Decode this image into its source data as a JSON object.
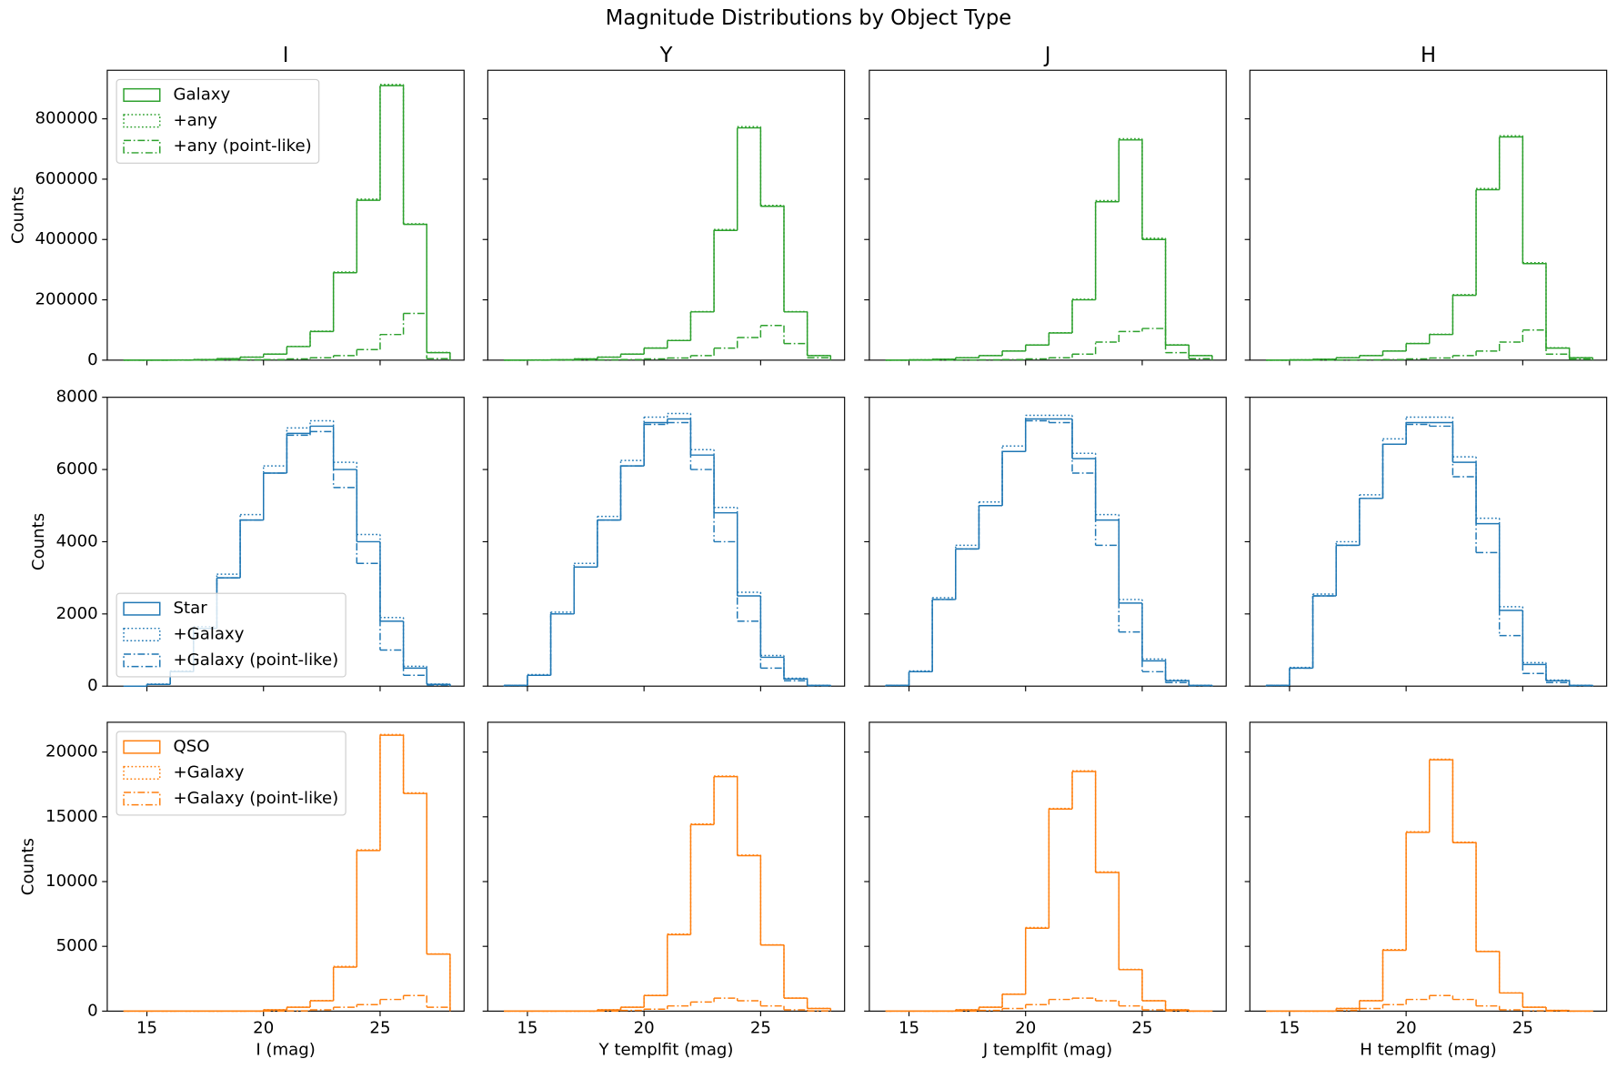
{
  "title": "Magnitude Distributions by Object Type",
  "chart_data": [
    {
      "type": "histogram",
      "ylabel": "Counts",
      "ylim": [
        0,
        961000
      ],
      "yticks": [
        0,
        200000,
        400000,
        600000,
        800000
      ],
      "legend": "upper left",
      "bins": [
        14,
        15,
        16,
        17,
        18,
        19,
        20,
        21,
        22,
        23,
        24,
        25,
        26,
        27,
        28
      ],
      "panels": [
        {
          "title": "I",
          "xlim": [
            13.3,
            28.6
          ],
          "xticks": [
            15,
            20,
            25
          ]
        },
        {
          "title": "Y",
          "xlim": [
            13.3,
            28.6
          ],
          "xticks": [
            15,
            20,
            25
          ]
        },
        {
          "title": "J",
          "xlim": [
            13.3,
            28.6
          ],
          "xticks": [
            15,
            20,
            25
          ]
        },
        {
          "title": "H",
          "xlim": [
            13.3,
            28.6
          ],
          "xticks": [
            15,
            20,
            25
          ]
        }
      ],
      "series": [
        {
          "name": "Galaxy",
          "color": "#2ca02c",
          "linestyle": "solid",
          "values": [
            [
              0,
              0,
              500,
              2000,
              5000,
              10000,
              20000,
              45000,
              95000,
              290000,
              530000,
              910000,
              450000,
              25000
            ],
            [
              0,
              500,
              1500,
              4000,
              10000,
              20000,
              40000,
              65000,
              160000,
              430000,
              770000,
              510000,
              160000,
              15000
            ],
            [
              0,
              1000,
              3000,
              8000,
              15000,
              30000,
              50000,
              90000,
              200000,
              525000,
              730000,
              400000,
              50000,
              15000
            ],
            [
              0,
              1000,
              3000,
              8000,
              15000,
              30000,
              55000,
              85000,
              215000,
              565000,
              740000,
              320000,
              40000,
              8000
            ]
          ]
        },
        {
          "name": "+any",
          "color": "#2ca02c",
          "linestyle": "dotted",
          "values": [
            [
              0,
              0,
              600,
              2100,
              5200,
              10300,
              20400,
              45600,
              96000,
              292000,
              534000,
              914000,
              452000,
              25500
            ],
            [
              0,
              600,
              1600,
              4100,
              10200,
              20300,
              40500,
              65700,
              161000,
              433000,
              774000,
              513000,
              161000,
              15500
            ],
            [
              0,
              1100,
              3100,
              8200,
              15300,
              30400,
              50600,
              91000,
              202000,
              529000,
              734000,
              404000,
              51000,
              15500
            ],
            [
              0,
              1100,
              3100,
              8200,
              15300,
              30400,
              55600,
              86000,
              217000,
              569000,
              744000,
              323000,
              41000,
              8200
            ]
          ]
        },
        {
          "name": "+any (point-like)",
          "color": "#2ca02c",
          "linestyle": "dashdot",
          "values": [
            [
              0,
              0,
              0,
              200,
              500,
              1000,
              2000,
              4000,
              8000,
              15000,
              35000,
              85000,
              155000,
              5000
            ],
            [
              0,
              0,
              200,
              500,
              1000,
              2000,
              4000,
              7000,
              15000,
              40000,
              75000,
              115000,
              55000,
              8000
            ],
            [
              0,
              0,
              200,
              500,
              1000,
              2000,
              4000,
              8000,
              20000,
              60000,
              95000,
              105000,
              25000,
              5000
            ],
            [
              0,
              0,
              200,
              500,
              1000,
              2000,
              4000,
              7000,
              15000,
              30000,
              60000,
              100000,
              20000,
              3000
            ]
          ]
        }
      ]
    },
    {
      "type": "histogram",
      "ylabel": "Counts",
      "ylim": [
        0,
        8000
      ],
      "yticks": [
        0,
        2000,
        4000,
        6000,
        8000
      ],
      "legend": "lower left",
      "bins": [
        14,
        15,
        16,
        17,
        18,
        19,
        20,
        21,
        22,
        23,
        24,
        25,
        26,
        27,
        28
      ],
      "panels": [
        {
          "xlim": [
            13.3,
            28.6
          ],
          "xticks": [
            15,
            20,
            25
          ]
        },
        {
          "xlim": [
            13.3,
            28.6
          ],
          "xticks": [
            15,
            20,
            25
          ]
        },
        {
          "xlim": [
            13.3,
            28.6
          ],
          "xticks": [
            15,
            20,
            25
          ]
        },
        {
          "xlim": [
            13.3,
            28.6
          ],
          "xticks": [
            15,
            20,
            25
          ]
        }
      ],
      "series": [
        {
          "name": "Star",
          "color": "#1f77b4",
          "linestyle": "solid",
          "values": [
            [
              0,
              50,
              400,
              1600,
              3000,
              4600,
              5900,
              7000,
              7200,
              6000,
              4000,
              1800,
              500,
              50
            ],
            [
              20,
              300,
              2000,
              3300,
              4600,
              6100,
              7300,
              7400,
              6400,
              4800,
              2500,
              800,
              200,
              20
            ],
            [
              20,
              400,
              2400,
              3800,
              5000,
              6500,
              7400,
              7400,
              6300,
              4600,
              2300,
              700,
              150,
              20
            ],
            [
              20,
              500,
              2500,
              3900,
              5200,
              6700,
              7300,
              7300,
              6200,
              4500,
              2100,
              600,
              150,
              20
            ]
          ]
        },
        {
          "name": "+Galaxy",
          "color": "#1f77b4",
          "linestyle": "dotted",
          "values": [
            [
              0,
              60,
              420,
              1650,
              3100,
              4750,
              6100,
              7150,
              7350,
              6200,
              4200,
              1900,
              550,
              60
            ],
            [
              20,
              320,
              2050,
              3400,
              4700,
              6250,
              7450,
              7550,
              6550,
              4950,
              2600,
              850,
              220,
              25
            ],
            [
              20,
              420,
              2450,
              3900,
              5100,
              6650,
              7500,
              7500,
              6450,
              4750,
              2400,
              750,
              170,
              25
            ],
            [
              20,
              520,
              2550,
              4000,
              5300,
              6850,
              7450,
              7450,
              6350,
              4650,
              2200,
              650,
              170,
              25
            ]
          ]
        },
        {
          "name": "+Galaxy (point-like)",
          "color": "#1f77b4",
          "linestyle": "dashdot",
          "values": [
            [
              0,
              50,
              400,
              1600,
              3000,
              4600,
              5900,
              6950,
              7050,
              5500,
              3400,
              1000,
              300,
              30
            ],
            [
              20,
              300,
              2000,
              3300,
              4600,
              6100,
              7250,
              7300,
              6000,
              4000,
              1800,
              500,
              150,
              15
            ],
            [
              20,
              400,
              2400,
              3800,
              5000,
              6500,
              7350,
              7300,
              5900,
              3900,
              1500,
              400,
              100,
              15
            ],
            [
              20,
              500,
              2500,
              3900,
              5200,
              6700,
              7250,
              7200,
              5800,
              3700,
              1400,
              350,
              100,
              15
            ]
          ]
        }
      ]
    },
    {
      "type": "histogram",
      "ylabel": "Counts",
      "ylim": [
        0,
        22300
      ],
      "yticks": [
        0,
        5000,
        10000,
        15000,
        20000
      ],
      "legend": "upper left",
      "bins": [
        14,
        15,
        16,
        17,
        18,
        19,
        20,
        21,
        22,
        23,
        24,
        25,
        26,
        27,
        28
      ],
      "panels": [
        {
          "xlabel": "I (mag)",
          "xlim": [
            13.3,
            28.6
          ],
          "xticks": [
            15,
            20,
            25
          ]
        },
        {
          "xlabel": "Y templfit (mag)",
          "xlim": [
            13.3,
            28.6
          ],
          "xticks": [
            15,
            20,
            25
          ]
        },
        {
          "xlabel": "J templfit (mag)",
          "xlim": [
            13.3,
            28.6
          ],
          "xticks": [
            15,
            20,
            25
          ]
        },
        {
          "xlabel": "H templfit (mag)",
          "xlim": [
            13.3,
            28.6
          ],
          "xticks": [
            15,
            20,
            25
          ]
        }
      ],
      "series": [
        {
          "name": "QSO",
          "color": "#ff7f0e",
          "linestyle": "solid",
          "values": [
            [
              0,
              0,
              0,
              0,
              0,
              0,
              100,
              300,
              800,
              3400,
              12400,
              21300,
              16800,
              4400
            ],
            [
              0,
              0,
              0,
              0,
              100,
              300,
              1200,
              5900,
              14400,
              18100,
              12000,
              5100,
              1000,
              200
            ],
            [
              0,
              0,
              0,
              100,
              300,
              1300,
              6400,
              15600,
              18500,
              10700,
              3200,
              800,
              100,
              0
            ],
            [
              0,
              0,
              0,
              200,
              800,
              4700,
              13800,
              19400,
              13000,
              4600,
              1400,
              300,
              50,
              0
            ]
          ]
        },
        {
          "name": "+Galaxy",
          "color": "#ff7f0e",
          "linestyle": "dotted",
          "values": [
            [
              0,
              0,
              0,
              0,
              0,
              0,
              110,
              310,
              820,
              3450,
              12450,
              21350,
              16850,
              4420
            ],
            [
              0,
              0,
              0,
              0,
              110,
              310,
              1220,
              5950,
              14450,
              18150,
              12050,
              5120,
              1010,
              210
            ],
            [
              0,
              0,
              0,
              110,
              310,
              1320,
              6450,
              15650,
              18550,
              10750,
              3220,
              810,
              110,
              0
            ],
            [
              0,
              0,
              0,
              210,
              820,
              4750,
              13850,
              19450,
              13050,
              4620,
              1410,
              310,
              55,
              0
            ]
          ]
        },
        {
          "name": "+Galaxy (point-like)",
          "color": "#ff7f0e",
          "linestyle": "dashdot",
          "values": [
            [
              0,
              0,
              0,
              0,
              0,
              0,
              0,
              20,
              100,
              300,
              500,
              900,
              1200,
              300
            ],
            [
              0,
              0,
              0,
              0,
              0,
              50,
              150,
              400,
              700,
              1000,
              800,
              400,
              100,
              20
            ],
            [
              0,
              0,
              0,
              0,
              50,
              200,
              500,
              900,
              1000,
              800,
              400,
              100,
              20,
              0
            ],
            [
              0,
              0,
              0,
              50,
              200,
              500,
              900,
              1200,
              900,
              400,
              100,
              30,
              0,
              0
            ]
          ]
        }
      ]
    }
  ]
}
